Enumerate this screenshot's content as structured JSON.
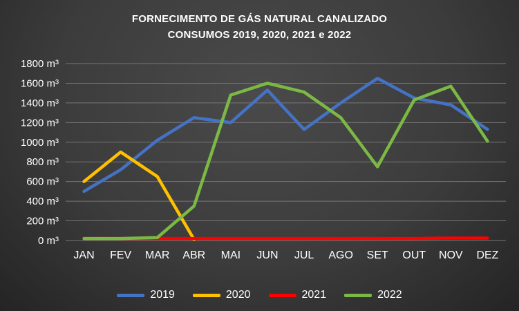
{
  "title": {
    "line1": "FORNECIMENTO DE GÁS NATURAL CANALIZADO",
    "line2": "CONSUMOS 2019, 2020, 2021 e 2022"
  },
  "chart_data": {
    "type": "line",
    "title": "FORNECIMENTO DE GÁS NATURAL CANALIZADO CONSUMOS 2019, 2020, 2021 e 2022",
    "categories": [
      "JAN",
      "FEV",
      "MAR",
      "ABR",
      "MAI",
      "JUN",
      "JUL",
      "AGO",
      "SET",
      "OUT",
      "NOV",
      "DEZ"
    ],
    "series": [
      {
        "name": "2019",
        "color": "#4472C4",
        "values": [
          500,
          720,
          1020,
          1250,
          1200,
          1530,
          1130,
          1400,
          1650,
          1450,
          1380,
          1130
        ]
      },
      {
        "name": "2020",
        "color": "#FFC000",
        "values": [
          600,
          900,
          650,
          10,
          null,
          null,
          null,
          null,
          null,
          null,
          null,
          null
        ]
      },
      {
        "name": "2021",
        "color": "#FF0000",
        "values": [
          20,
          20,
          20,
          20,
          20,
          20,
          20,
          20,
          20,
          20,
          25,
          25
        ]
      },
      {
        "name": "2022",
        "color": "#7CB944",
        "values": [
          20,
          20,
          30,
          350,
          1480,
          1600,
          1510,
          1250,
          750,
          1430,
          1570,
          1010
        ]
      }
    ],
    "unit": "m³",
    "ylim": [
      0,
      1800
    ],
    "ytick_step": 200,
    "ytick_labels": [
      "0 m³",
      "200 m³",
      "400 m³",
      "600 m³",
      "800 m³",
      "1000 m³",
      "1200 m³",
      "1400 m³",
      "1600 m³",
      "1800 m³"
    ],
    "grid": true,
    "legend_position": "bottom"
  }
}
